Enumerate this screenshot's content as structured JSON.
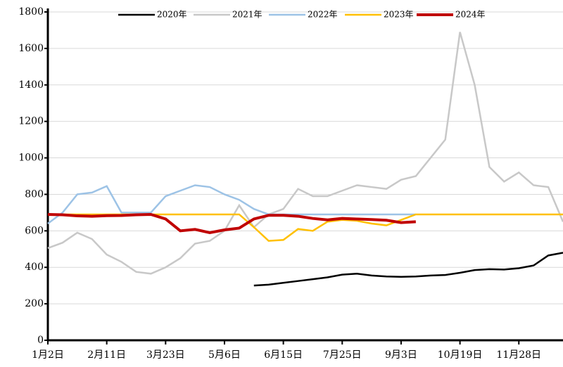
{
  "chart_data": {
    "type": "line",
    "categories": [
      "1月2日",
      null,
      null,
      null,
      "2月11日",
      null,
      null,
      null,
      "3月23日",
      null,
      null,
      null,
      "5月6日",
      null,
      null,
      null,
      "6月15日",
      null,
      null,
      null,
      "7月25日",
      null,
      null,
      null,
      "9月3日",
      null,
      null,
      null,
      "10月19日",
      null,
      null,
      null,
      "11月28日",
      null,
      null,
      null
    ],
    "series": [
      {
        "name": "2020年",
        "color": "#000000",
        "values": [
          null,
          null,
          null,
          null,
          null,
          null,
          null,
          null,
          null,
          null,
          null,
          null,
          null,
          null,
          300,
          305,
          315,
          325,
          335,
          345,
          360,
          365,
          355,
          350,
          348,
          350,
          355,
          358,
          370,
          385,
          390,
          388,
          395,
          410,
          465,
          480
        ]
      },
      {
        "name": "2021年",
        "color": "#c8c8c8",
        "values": [
          505,
          535,
          590,
          555,
          470,
          430,
          375,
          365,
          400,
          450,
          530,
          545,
          600,
          740,
          620,
          690,
          720,
          830,
          790,
          790,
          820,
          850,
          840,
          830,
          880,
          900,
          1000,
          1100,
          1690,
          1400,
          950,
          870,
          920,
          850,
          840,
          650
        ]
      },
      {
        "name": "2022年",
        "color": "#9dc3e6",
        "values": [
          640,
          700,
          800,
          810,
          845,
          700,
          700,
          700,
          790,
          820,
          850,
          840,
          800,
          770,
          720,
          690,
          690,
          690,
          690,
          690,
          690,
          690,
          690,
          690,
          690,
          690,
          null,
          null,
          null,
          null,
          null,
          null,
          null,
          null,
          null,
          null
        ]
      },
      {
        "name": "2023年",
        "color": "#ffc000",
        "values": [
          690,
          690,
          690,
          690,
          690,
          690,
          690,
          690,
          690,
          690,
          690,
          690,
          690,
          690,
          620,
          545,
          550,
          610,
          600,
          650,
          660,
          655,
          640,
          630,
          660,
          690,
          690,
          690,
          690,
          690,
          690,
          690,
          690,
          690,
          690,
          690
        ]
      },
      {
        "name": "2024年",
        "color": "#c00000",
        "values": [
          690,
          688,
          682,
          680,
          683,
          684,
          688,
          690,
          665,
          600,
          608,
          590,
          605,
          615,
          665,
          685,
          685,
          680,
          668,
          660,
          668,
          665,
          662,
          658,
          645,
          650,
          null,
          null,
          null,
          null,
          null,
          null,
          null,
          null,
          null,
          null
        ]
      }
    ],
    "ylim": [
      0,
      1800
    ],
    "yticks": [
      0,
      200,
      400,
      600,
      800,
      1000,
      1200,
      1400,
      1600,
      1800
    ],
    "grid": true,
    "legend": "top"
  }
}
